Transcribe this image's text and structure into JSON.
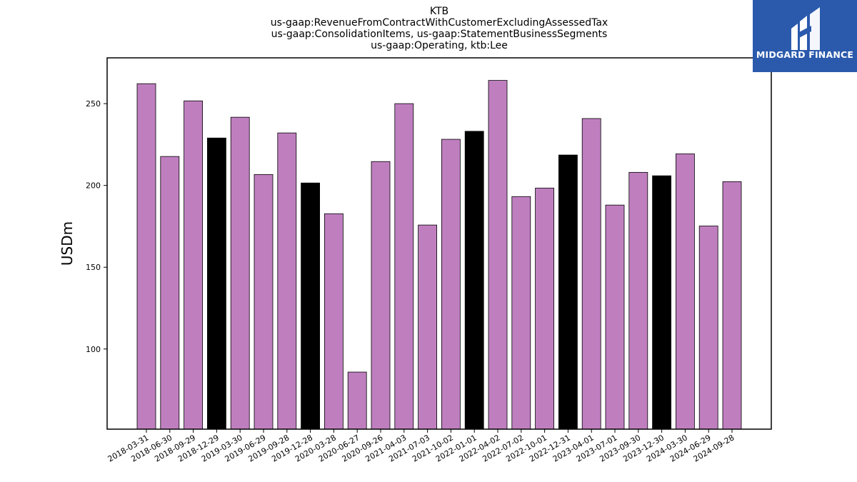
{
  "logo": {
    "text": "MIDGARD FINANCE",
    "background": "#2b5aad"
  },
  "chart_data": {
    "type": "bar",
    "title_lines": [
      "KTB",
      "us-gaap:RevenueFromContractWithCustomerExcludingAssessedTax",
      "us-gaap:ConsolidationItems, us-gaap:StatementBusinessSegments",
      "us-gaap:Operating, ktb:Lee"
    ],
    "xlabel": "",
    "ylabel": "USDm",
    "ylim": [
      51,
      278
    ],
    "yticks": [
      100,
      150,
      200,
      250
    ],
    "grid": false,
    "legend": "none",
    "colors": {
      "default": "#bf7fbf",
      "highlight": "#000000",
      "edge": "#000000"
    },
    "categories": [
      "2018-03-31",
      "2018-06-30",
      "2018-09-29",
      "2018-12-29",
      "2019-03-30",
      "2019-06-29",
      "2019-09-28",
      "2019-12-28",
      "2020-03-28",
      "2020-06-27",
      "2020-09-26",
      "2021-04-03",
      "2021-07-03",
      "2021-10-02",
      "2022-01-01",
      "2022-04-02",
      "2022-07-02",
      "2022-10-01",
      "2022-12-31",
      "2023-04-01",
      "2023-07-01",
      "2023-09-30",
      "2023-12-30",
      "2024-03-30",
      "2024-06-29",
      "2024-09-28"
    ],
    "values": [
      262.2,
      217.7,
      251.7,
      229.0,
      241.7,
      206.7,
      232.1,
      201.5,
      182.7,
      85.9,
      214.6,
      250.0,
      175.8,
      228.2,
      233.1,
      264.2,
      193.2,
      198.4,
      218.6,
      240.9,
      188.0,
      208.0,
      205.9,
      219.3,
      175.2,
      202.3
    ],
    "highlight": [
      false,
      false,
      false,
      true,
      false,
      false,
      false,
      true,
      false,
      false,
      false,
      false,
      false,
      false,
      true,
      false,
      false,
      false,
      true,
      false,
      false,
      false,
      true,
      false,
      false,
      false
    ]
  }
}
